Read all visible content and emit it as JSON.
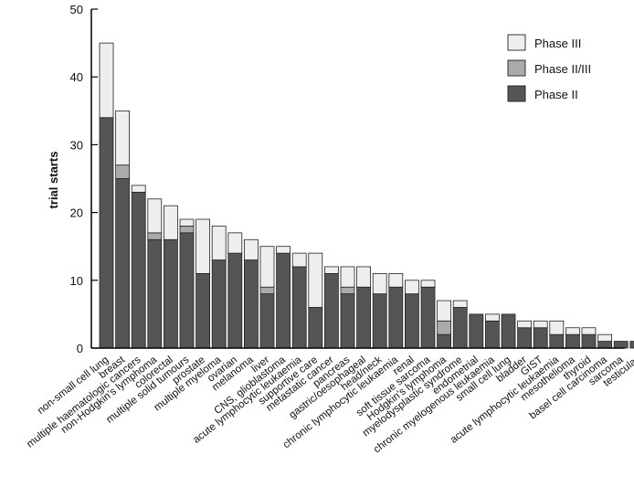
{
  "chart_data": {
    "type": "bar",
    "stacked": true,
    "ylabel": "trial starts",
    "ylim": [
      0,
      50
    ],
    "yticks": [
      0,
      10,
      20,
      30,
      40,
      50
    ],
    "legend_position": "top-right",
    "categories": [
      "non-small cell lung",
      "breast",
      "multiple haematologic cancers",
      "non-Hodgkin's lymphoma",
      "colorectal",
      "multiple solid tumours",
      "prostate",
      "multiple myeloma",
      "ovarian",
      "melanoma",
      "liver",
      "CNS, glioblastoma",
      "acute lymphocytic leukaemia",
      "supportive care",
      "metastatic cancer",
      "pancreas",
      "gastric/oesophageal",
      "head/neck",
      "chronic lymphocytic leukaemia",
      "renal",
      "soft tissue sarcoma",
      "Hodgkin's lymphoma",
      "myelodysplastic syndrome",
      "endometrial",
      "chronic myelogenous leukaemia",
      "small cell lung",
      "bladder",
      "GIST",
      "acute lymphocytic leukaemia",
      "mesothelioma",
      "thyroid",
      "basel cell carcinoma",
      "sarcoma",
      "testicular"
    ],
    "series": [
      {
        "name": "Phase II",
        "color": "#555555",
        "values": [
          34,
          25,
          23,
          16,
          16,
          17,
          11,
          13,
          14,
          13,
          8,
          14,
          12,
          6,
          11,
          8,
          9,
          8,
          9,
          8,
          9,
          2,
          6,
          5,
          4,
          5,
          3,
          3,
          2,
          2,
          2,
          1,
          1,
          1
        ]
      },
      {
        "name": "Phase II/III",
        "color": "#aaaaaa",
        "values": [
          0,
          2,
          0,
          1,
          0,
          1,
          0,
          0,
          0,
          0,
          1,
          0,
          0,
          0,
          0,
          1,
          0,
          0,
          0,
          0,
          0,
          2,
          0,
          0,
          0,
          0,
          0,
          0,
          0,
          0,
          0,
          0,
          0,
          0
        ]
      },
      {
        "name": "Phase III",
        "color": "#eeeeee",
        "values": [
          11,
          8,
          1,
          5,
          5,
          1,
          8,
          5,
          3,
          3,
          6,
          1,
          2,
          8,
          1,
          3,
          3,
          3,
          2,
          2,
          1,
          3,
          1,
          0,
          1,
          0,
          1,
          1,
          2,
          1,
          1,
          1,
          0,
          0
        ]
      }
    ],
    "legend_order": [
      "Phase III",
      "Phase II/III",
      "Phase II"
    ]
  }
}
